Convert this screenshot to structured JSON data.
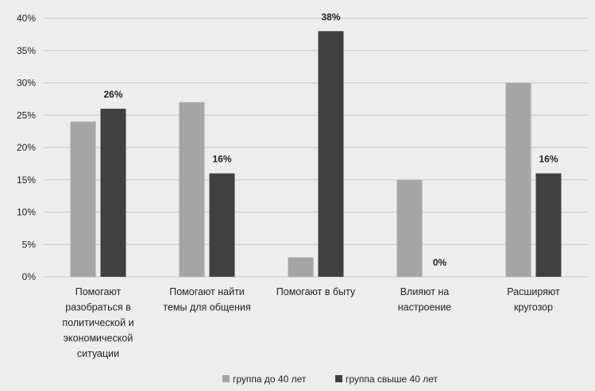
{
  "chart_data": {
    "type": "bar",
    "title": "",
    "xlabel": "",
    "ylabel": "",
    "ylim": [
      0,
      40
    ],
    "yticks": [
      "0%",
      "5%",
      "10%",
      "15%",
      "20%",
      "25%",
      "30%",
      "35%",
      "40%"
    ],
    "grid": true,
    "legend_position": "bottom",
    "categories": [
      [
        "Помогают",
        "разобраться в",
        "политической и",
        "экономической",
        "ситуации"
      ],
      [
        "Помогают найти",
        "темы для общения"
      ],
      [
        "Помогают в быту"
      ],
      [
        "Влияют на",
        "настроение"
      ],
      [
        "Расширяют",
        "кругозор"
      ]
    ],
    "series": [
      {
        "name": "группа до 40 лет",
        "color": "#a6a6a6",
        "values": [
          24,
          27,
          3,
          15,
          30
        ],
        "data_labels": [
          "",
          "",
          "",
          "",
          ""
        ]
      },
      {
        "name": "группа свыше 40 лет",
        "color": "#404040",
        "values": [
          26,
          16,
          38,
          0,
          16
        ],
        "data_labels": [
          "26%",
          "16%",
          "38%",
          "0%",
          "16%"
        ]
      }
    ]
  }
}
